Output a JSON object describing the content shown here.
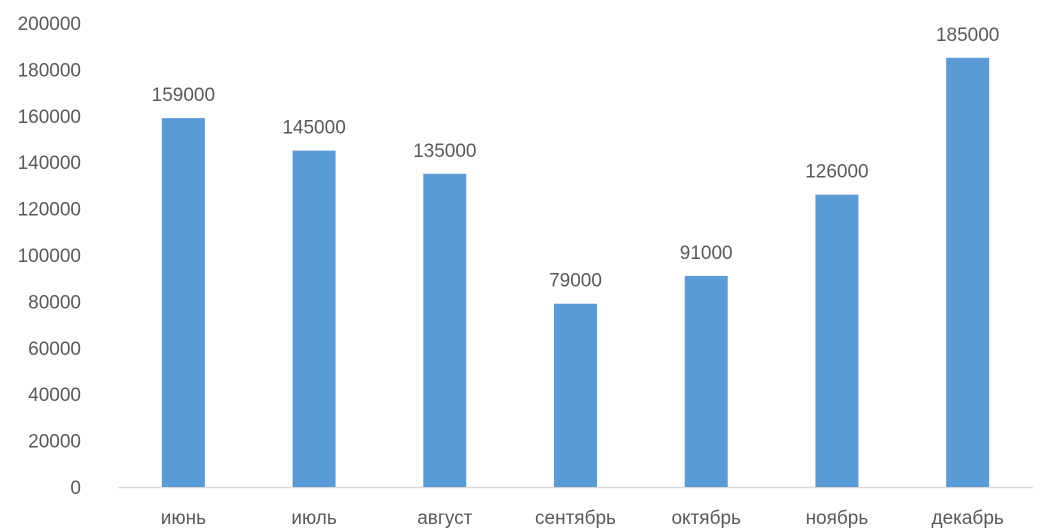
{
  "chart_data": {
    "type": "bar",
    "title": "",
    "xlabel": "",
    "ylabel": "",
    "categories": [
      "июнь",
      "июль",
      "август",
      "сентябрь",
      "октябрь",
      "ноябрь",
      "декабрь"
    ],
    "values": [
      159000,
      145000,
      135000,
      79000,
      91000,
      126000,
      185000
    ],
    "data_labels": [
      "159000",
      "145000",
      "135000",
      "79000",
      "91000",
      "126000",
      "185000"
    ],
    "ylim": [
      0,
      200000
    ],
    "yticks": [
      0,
      20000,
      40000,
      60000,
      80000,
      100000,
      120000,
      140000,
      160000,
      180000,
      200000
    ],
    "ytick_labels": [
      "0",
      "20000",
      "40000",
      "60000",
      "80000",
      "100000",
      "120000",
      "140000",
      "160000",
      "180000",
      "200000"
    ],
    "grid": false,
    "legend": "none",
    "colors": {
      "bar": "#5B9BD5",
      "axis": "#D9D9D9",
      "text": "#595959"
    }
  }
}
